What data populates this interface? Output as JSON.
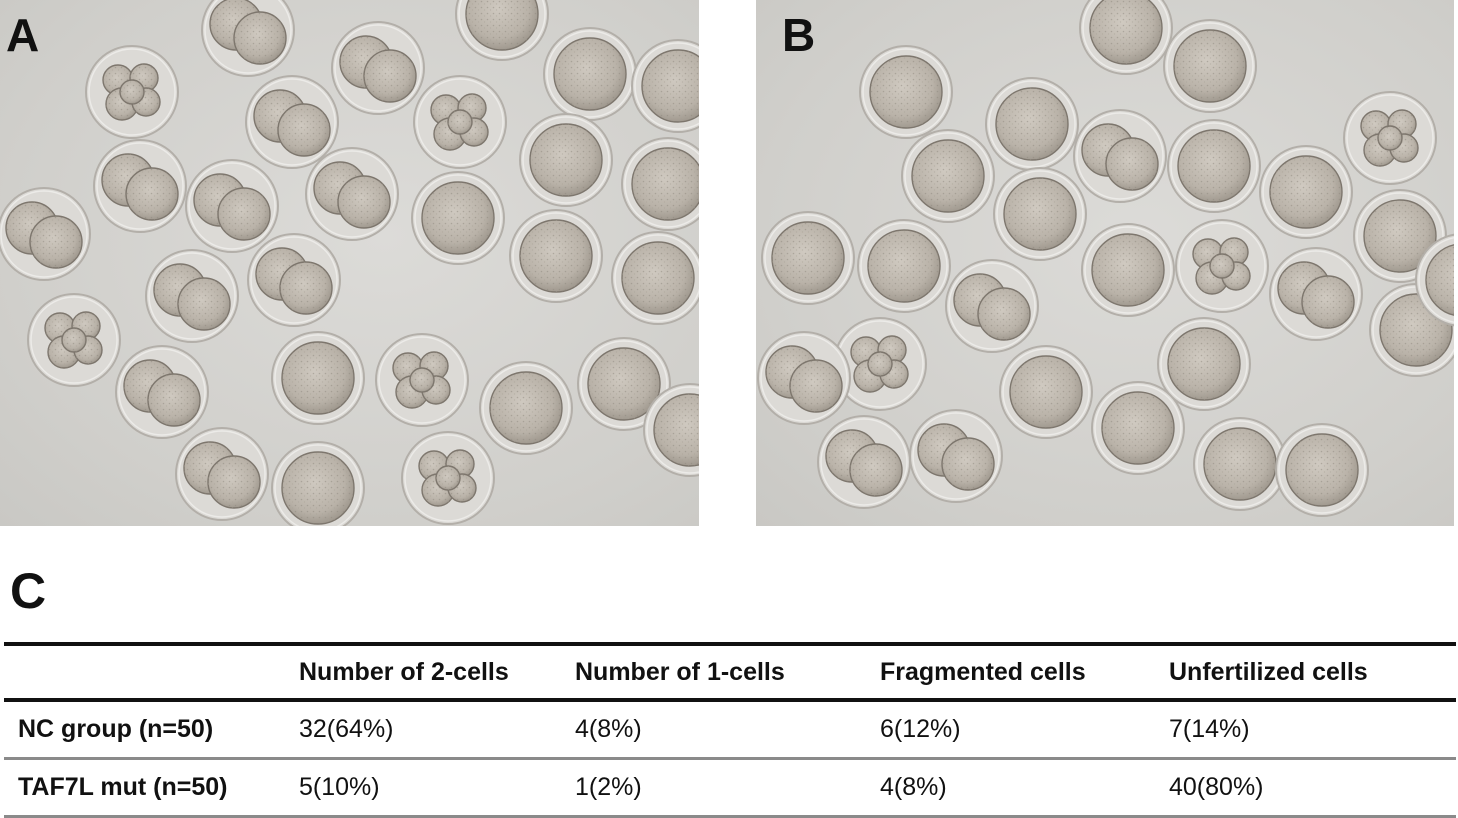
{
  "figure": {
    "panel_labels": {
      "a": "A",
      "b": "B",
      "c": "C"
    }
  },
  "table": {
    "columns": [
      "",
      "Number of 2-cells",
      "Number of 1-cells",
      "Fragmented cells",
      "Unfertilized cells"
    ],
    "rows": [
      {
        "group": "NC group (n=50)",
        "two_cells": "32(64%)",
        "one_cells": "4(8%)",
        "fragmented": "6(12%)",
        "unfertilized": "7(14%)"
      },
      {
        "group": "TAF7L mut (n=50)",
        "two_cells": "5(10%)",
        "one_cells": "1(2%)",
        "fragmented": "4(8%)",
        "unfertilized": "40(80%)"
      }
    ]
  }
}
